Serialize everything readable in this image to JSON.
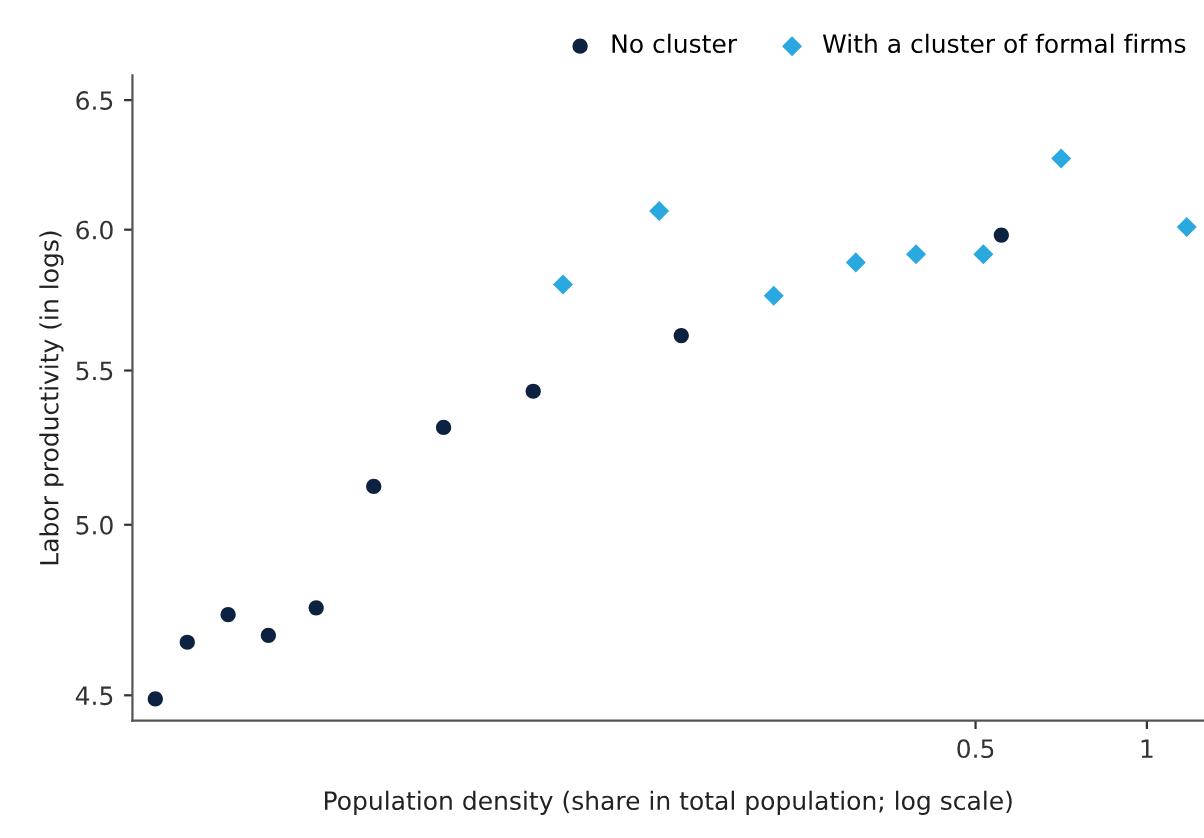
{
  "chart_data": {
    "type": "scatter",
    "xlabel": "Population density (share in total population; log scale)",
    "ylabel": "Labor productivity (in logs)",
    "log": "xy",
    "xlim": [
      0.0165,
      1.26
    ],
    "ylim": [
      4.43,
      6.6
    ],
    "xticks": [
      0.5,
      1
    ],
    "yticks": [
      4.5,
      {
        "value": 5,
        "label": "5.0"
      },
      5.5,
      {
        "value": 6,
        "label": "6.0"
      },
      6.5
    ],
    "grid": false,
    "legend": "top right",
    "series": [
      {
        "name": "No cluster",
        "color": "#0d2240",
        "marker": "circle",
        "x": [
          0.0181,
          0.0206,
          0.0243,
          0.0286,
          0.0347,
          0.0438,
          0.0581,
          0.0835,
          0.152,
          0.555
        ],
        "values": [
          4.49,
          4.65,
          4.73,
          4.67,
          4.75,
          5.12,
          5.31,
          5.43,
          5.62,
          5.98
        ]
      },
      {
        "name": "With a cluster of formal firms",
        "color": "#2aa8e0",
        "marker": "diamond",
        "x": [
          0.0942,
          0.139,
          0.221,
          0.308,
          0.393,
          0.516,
          0.707,
          1.175
        ],
        "values": [
          5.8,
          6.07,
          5.76,
          5.88,
          5.91,
          5.91,
          6.27,
          6.01
        ]
      }
    ]
  }
}
